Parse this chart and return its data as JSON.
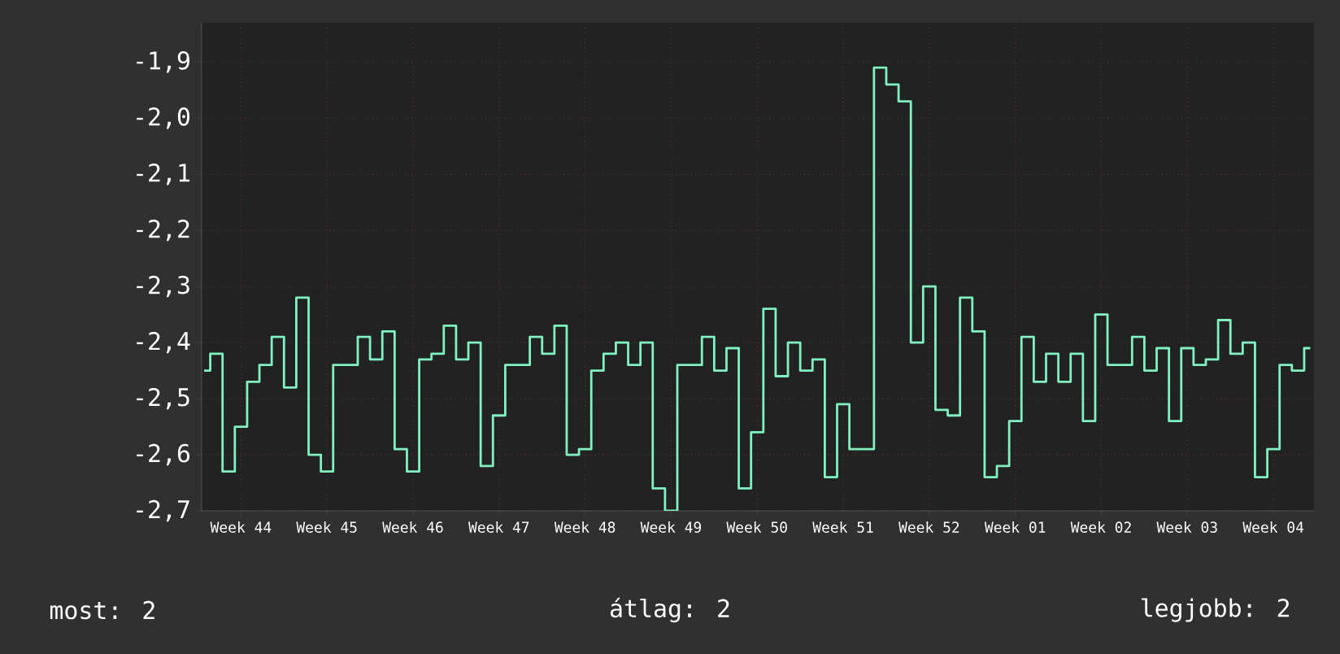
{
  "chart_data": {
    "type": "step",
    "color": "#80f2c0",
    "grid": true,
    "categories": [
      null,
      null,
      null,
      "Week 44",
      null,
      null,
      null,
      null,
      null,
      null,
      "Week 45",
      null,
      null,
      null,
      null,
      null,
      null,
      "Week 46",
      null,
      null,
      null,
      null,
      null,
      null,
      "Week 47",
      null,
      null,
      null,
      null,
      null,
      null,
      "Week 48",
      null,
      null,
      null,
      null,
      null,
      null,
      "Week 49",
      null,
      null,
      null,
      null,
      null,
      null,
      "Week 50",
      null,
      null,
      null,
      null,
      null,
      null,
      "Week 51",
      null,
      null,
      null,
      null,
      null,
      null,
      "Week 52",
      null,
      null,
      null,
      null,
      null,
      null,
      "Week 01",
      null,
      null,
      null,
      null,
      null,
      null,
      "Week 02",
      null,
      null,
      null,
      null,
      null,
      null,
      "Week 03",
      null,
      null,
      null,
      null,
      null,
      null,
      "Week 04",
      null,
      null,
      null
    ],
    "values": [
      -2.45,
      -2.42,
      -2.63,
      -2.55,
      -2.47,
      -2.44,
      -2.39,
      -2.48,
      -2.32,
      -2.6,
      -2.63,
      -2.44,
      -2.44,
      -2.39,
      -2.43,
      -2.38,
      -2.59,
      -2.63,
      -2.43,
      -2.42,
      -2.37,
      -2.43,
      -2.4,
      -2.62,
      -2.53,
      -2.44,
      -2.44,
      -2.39,
      -2.42,
      -2.37,
      -2.6,
      -2.59,
      -2.45,
      -2.42,
      -2.4,
      -2.44,
      -2.4,
      -2.66,
      -2.7,
      -2.44,
      -2.44,
      -2.39,
      -2.45,
      -2.41,
      -2.66,
      -2.56,
      -2.34,
      -2.46,
      -2.4,
      -2.45,
      -2.43,
      -2.64,
      -2.51,
      -2.59,
      -2.59,
      -1.91,
      -1.94,
      -1.97,
      -2.4,
      -2.3,
      -2.52,
      -2.53,
      -2.32,
      -2.38,
      -2.64,
      -2.62,
      -2.54,
      -2.39,
      -2.47,
      -2.42,
      -2.47,
      -2.42,
      -2.54,
      -2.35,
      -2.44,
      -2.44,
      -2.39,
      -2.45,
      -2.41,
      -2.54,
      -2.41,
      -2.44,
      -2.43,
      -2.36,
      -2.42,
      -2.4,
      -2.64,
      -2.59,
      -2.44,
      -2.45,
      -2.41
    ],
    "ylim": [
      -2.7,
      -1.83
    ],
    "yticks": [
      {
        "value": -2.7,
        "label": "-2,7"
      },
      {
        "value": -2.6,
        "label": "-2,6"
      },
      {
        "value": -2.5,
        "label": "-2,5"
      },
      {
        "value": -2.4,
        "label": "-2,4"
      },
      {
        "value": -2.3,
        "label": "-2,3"
      },
      {
        "value": -2.2,
        "label": "-2,2"
      },
      {
        "value": -2.1,
        "label": "-2,1"
      },
      {
        "value": -2.0,
        "label": "-2,0"
      },
      {
        "value": -1.9,
        "label": "-1,9"
      }
    ],
    "annotations": [
      "most: 2",
      "átlag: 2",
      "legjobb: 2"
    ]
  }
}
